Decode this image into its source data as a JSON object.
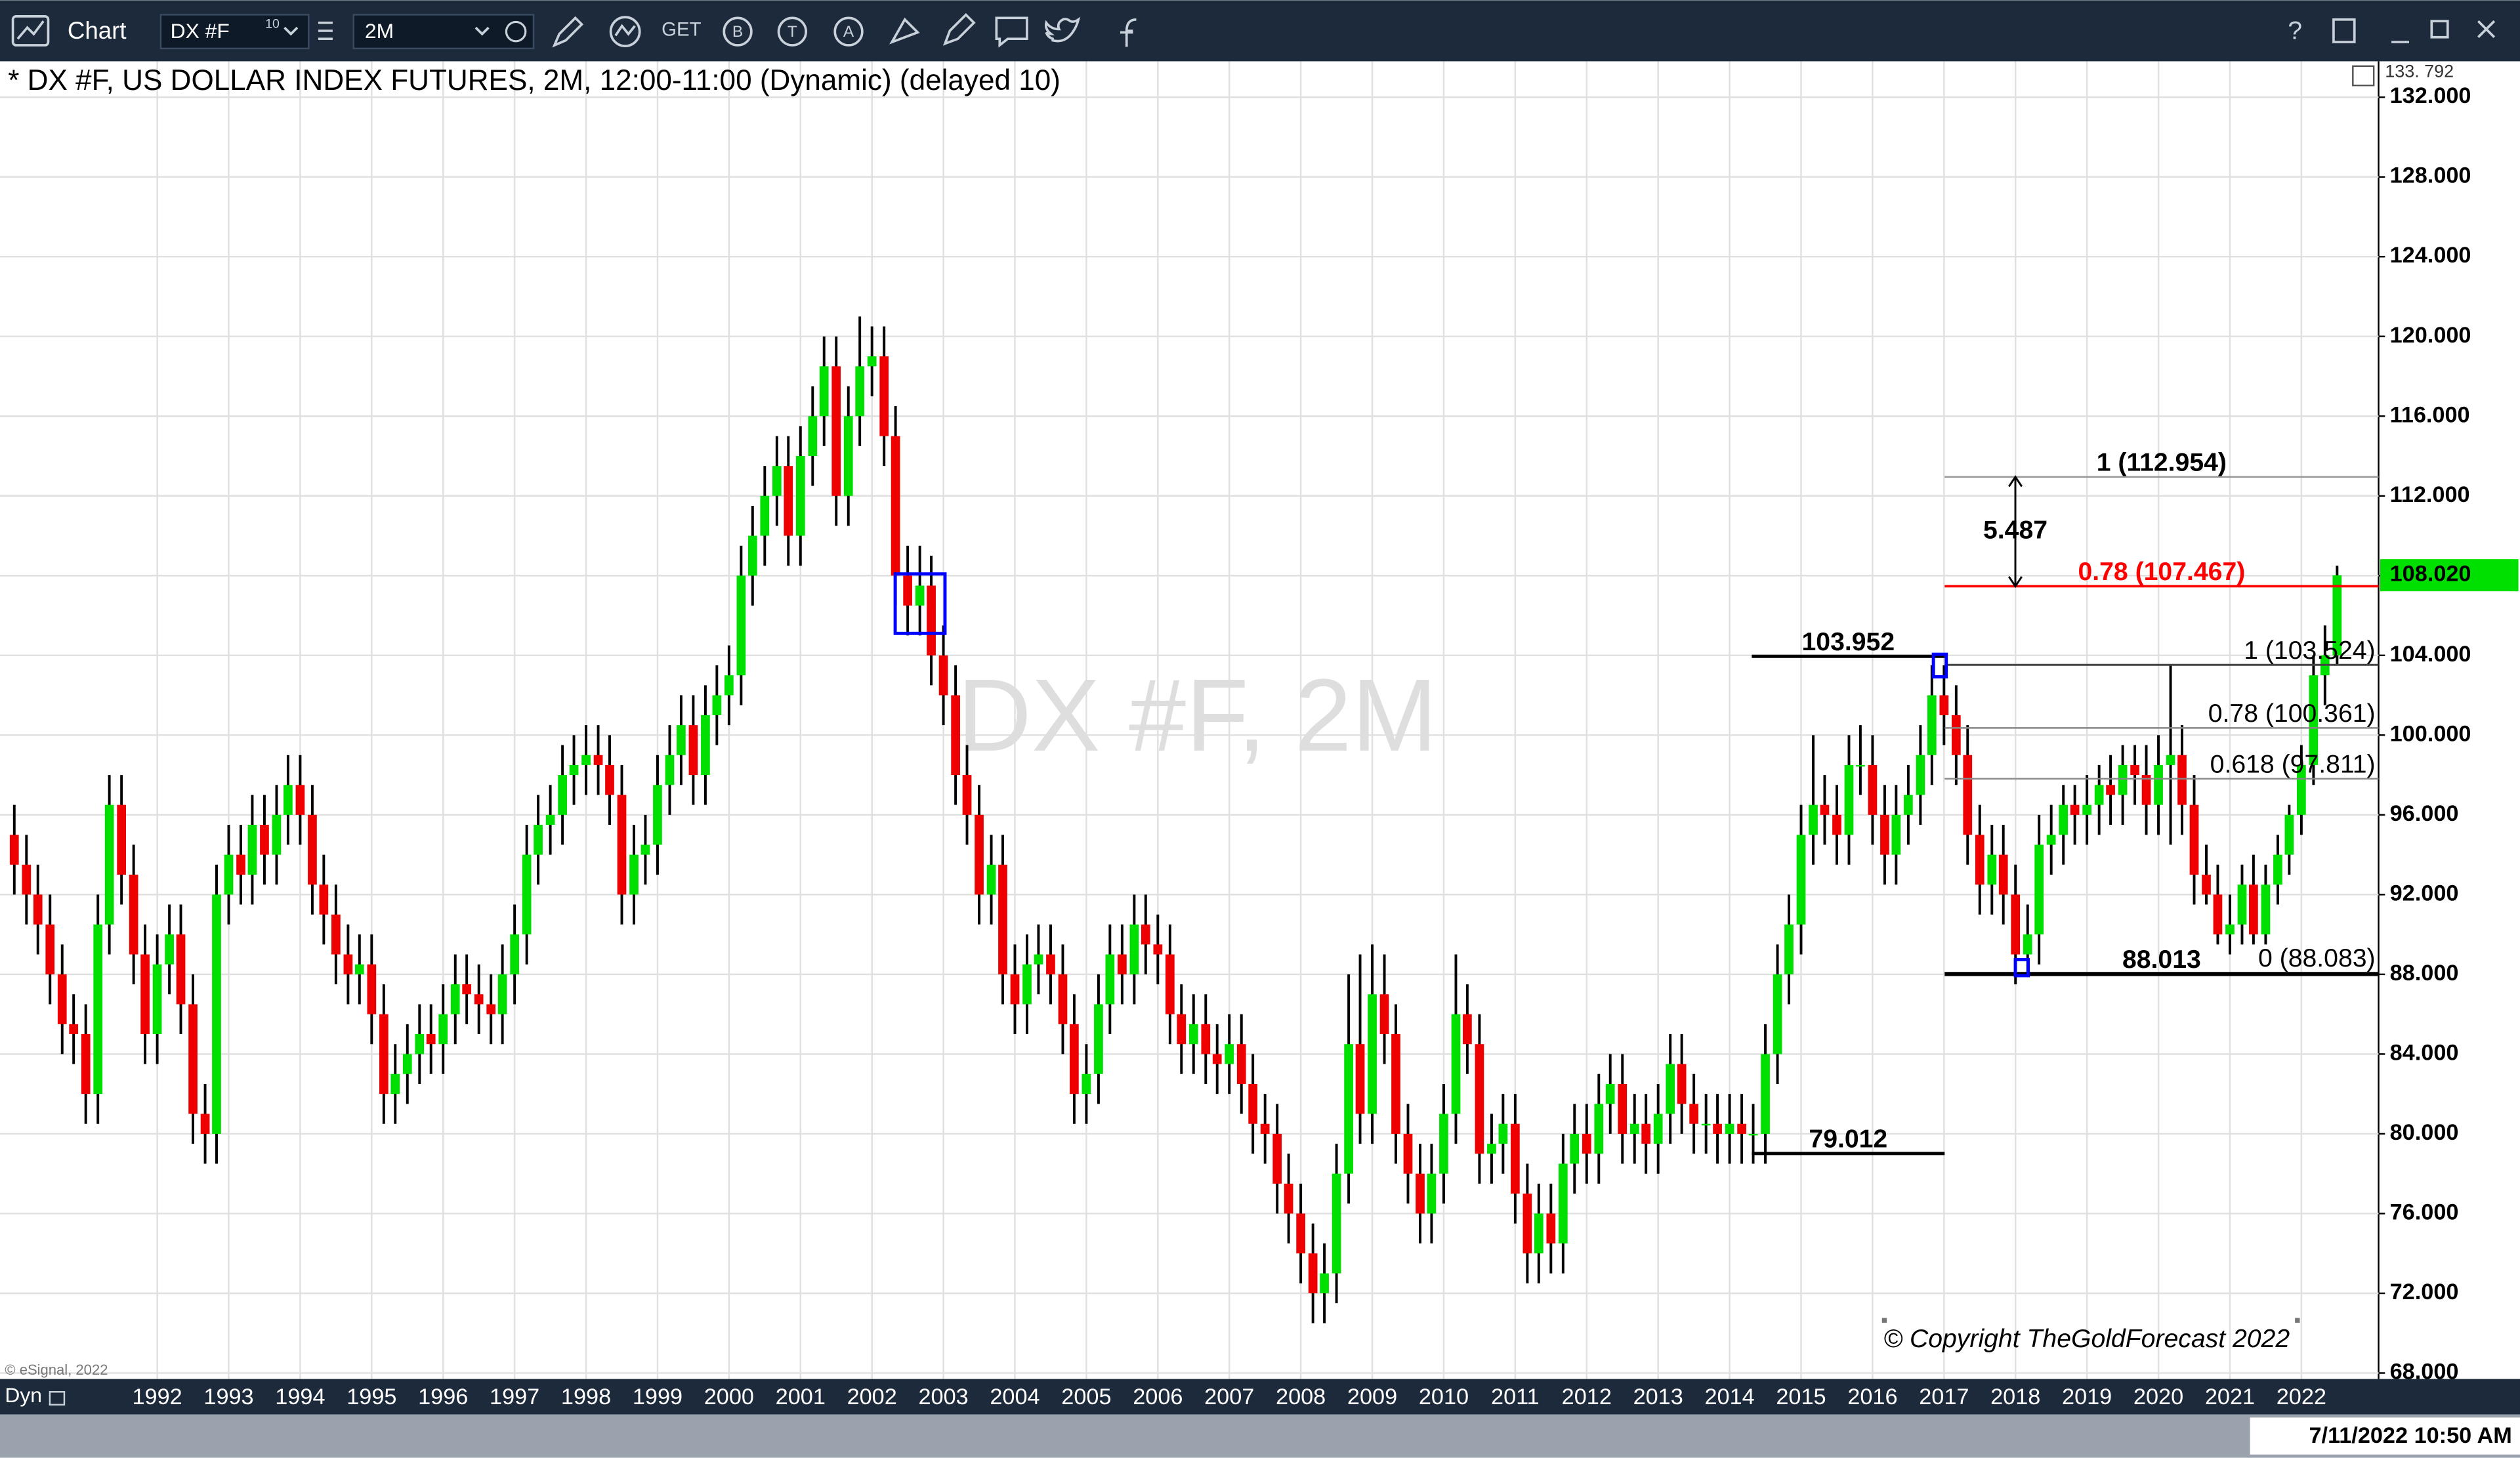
{
  "ui": {
    "app": "Chart",
    "symbol": "DX #F",
    "symbol_badge": "10",
    "interval": "2M",
    "get": "GET",
    "help": "?",
    "mode": "Dyn",
    "timestamp": "7/11/2022 10:50 AM",
    "vendor": "© eSignal, 2022"
  },
  "chart_data": {
    "type": "candlestick",
    "title": "* DX #F, US DOLLAR INDEX FUTURES, 2M, 12:00-11:00 (Dynamic) (delayed 10)",
    "watermark": "DX #F, 2M",
    "copyright": "© Copyright TheGoldForecast 2022",
    "axis_top_label": "133. 792",
    "xlim": [
      1989.8,
      2023.08
    ],
    "ylim": [
      67.7,
      133.8
    ],
    "xticks": [
      1992,
      1993,
      1994,
      1995,
      1996,
      1997,
      1998,
      1999,
      2000,
      2001,
      2002,
      2003,
      2004,
      2005,
      2006,
      2007,
      2008,
      2009,
      2010,
      2011,
      2012,
      2013,
      2014,
      2015,
      2016,
      2017,
      2018,
      2019,
      2020,
      2021,
      2022
    ],
    "yticks": [
      {
        "value": 68,
        "label": "68.000"
      },
      {
        "value": 72,
        "label": "72.000"
      },
      {
        "value": 76,
        "label": "76.000"
      },
      {
        "value": 80,
        "label": "80.000"
      },
      {
        "value": 84,
        "label": "84.000"
      },
      {
        "value": 88,
        "label": "88.000"
      },
      {
        "value": 92,
        "label": "92.000"
      },
      {
        "value": 96,
        "label": "96.000"
      },
      {
        "value": 100,
        "label": "100.000"
      },
      {
        "value": 104,
        "label": "104.000"
      },
      {
        "value": 108,
        "label": "108.000"
      },
      {
        "value": 112,
        "label": "112.000"
      },
      {
        "value": 116,
        "label": "116.000"
      },
      {
        "value": 120,
        "label": "120.000"
      },
      {
        "value": 124,
        "label": "124.000"
      },
      {
        "value": 128,
        "label": "128.000"
      },
      {
        "value": 132,
        "label": "132.000"
      }
    ],
    "grid": true,
    "up_color": "#00e000",
    "down_color": "#ee0000",
    "last_price": {
      "value": 108.02,
      "label": "108.020",
      "color": "#00e000"
    },
    "measure": {
      "label": "5.487"
    },
    "levels": [
      {
        "label": "1 (112.954)",
        "value": 112.954,
        "color": "#000000"
      },
      {
        "label": "0.78 (107.467)",
        "value": 107.467,
        "color": "#ff0000"
      },
      {
        "label": "1 (103.524)",
        "value": 103.524,
        "color": "#000000"
      },
      {
        "label": "0.78 (100.361)",
        "value": 100.361,
        "color": "#000000"
      },
      {
        "label": "0.618 (97.811)",
        "value": 97.811,
        "color": "#000000"
      },
      {
        "label": "0 (88.083)",
        "value": 88.083,
        "color": "#000000"
      },
      {
        "label": "103.952",
        "value": 103.952,
        "color": "#000000"
      },
      {
        "label": "88.013",
        "value": 88.013,
        "color": "#000000"
      },
      {
        "label": "79.012",
        "value": 79.012,
        "color": "#000000"
      }
    ],
    "x": [
      1990,
      1990.17,
      1990.33,
      1990.5,
      1990.67,
      1990.83,
      1991,
      1991.17,
      1991.33,
      1991.5,
      1991.67,
      1991.83,
      1992,
      1992.17,
      1992.33,
      1992.5,
      1992.67,
      1992.83,
      1993,
      1993.17,
      1993.33,
      1993.5,
      1993.67,
      1993.83,
      1994,
      1994.17,
      1994.33,
      1994.5,
      1994.67,
      1994.83,
      1995,
      1995.17,
      1995.33,
      1995.5,
      1995.67,
      1995.83,
      1996,
      1996.17,
      1996.33,
      1996.5,
      1996.67,
      1996.83,
      1997,
      1997.17,
      1997.33,
      1997.5,
      1997.67,
      1997.83,
      1998,
      1998.17,
      1998.33,
      1998.5,
      1998.67,
      1998.83,
      1999,
      1999.17,
      1999.33,
      1999.5,
      1999.67,
      1999.83,
      2000,
      2000.17,
      2000.33,
      2000.5,
      2000.67,
      2000.83,
      2001,
      2001.17,
      2001.33,
      2001.5,
      2001.67,
      2001.83,
      2002,
      2002.17,
      2002.33,
      2002.5,
      2002.67,
      2002.83,
      2003,
      2003.17,
      2003.33,
      2003.5,
      2003.67,
      2003.83,
      2004,
      2004.17,
      2004.33,
      2004.5,
      2004.67,
      2004.83,
      2005,
      2005.17,
      2005.33,
      2005.5,
      2005.67,
      2005.83,
      2006,
      2006.17,
      2006.33,
      2006.5,
      2006.67,
      2006.83,
      2007,
      2007.17,
      2007.33,
      2007.5,
      2007.67,
      2007.83,
      2008,
      2008.17,
      2008.33,
      2008.5,
      2008.67,
      2008.83,
      2009,
      2009.17,
      2009.33,
      2009.5,
      2009.67,
      2009.83,
      2010,
      2010.17,
      2010.33,
      2010.5,
      2010.67,
      2010.83,
      2011,
      2011.17,
      2011.33,
      2011.5,
      2011.67,
      2011.83,
      2012,
      2012.17,
      2012.33,
      2012.5,
      2012.67,
      2012.83,
      2013,
      2013.17,
      2013.33,
      2013.5,
      2013.67,
      2013.83,
      2014,
      2014.17,
      2014.33,
      2014.5,
      2014.67,
      2014.83,
      2015,
      2015.17,
      2015.33,
      2015.5,
      2015.67,
      2015.83,
      2016,
      2016.17,
      2016.33,
      2016.5,
      2016.67,
      2016.83,
      2017,
      2017.17,
      2017.33,
      2017.5,
      2017.67,
      2017.83,
      2018,
      2018.17,
      2018.33,
      2018.5,
      2018.67,
      2018.83,
      2019,
      2019.17,
      2019.33,
      2019.5,
      2019.67,
      2019.83,
      2020,
      2020.17,
      2020.33,
      2020.5,
      2020.67,
      2020.83,
      2021,
      2021.17,
      2021.33,
      2021.5,
      2021.67,
      2021.83,
      2022,
      2022.17,
      2022.33,
      2022.5
    ],
    "candles": [
      [
        95,
        96.5,
        92,
        93.5
      ],
      [
        93.5,
        95,
        90.5,
        92
      ],
      [
        92,
        93.5,
        89,
        90.5
      ],
      [
        90.5,
        92,
        86.5,
        88
      ],
      [
        88,
        89.5,
        84,
        85.5
      ],
      [
        85.5,
        87,
        83.5,
        85
      ],
      [
        85,
        86.5,
        80.5,
        82
      ],
      [
        82,
        92,
        80.5,
        90.5
      ],
      [
        90.5,
        98,
        89,
        96.5
      ],
      [
        96.5,
        98,
        91.5,
        93
      ],
      [
        93,
        94.5,
        87.5,
        89
      ],
      [
        89,
        90.5,
        83.5,
        85
      ],
      [
        85,
        90,
        83.5,
        88.5
      ],
      [
        88.5,
        91.5,
        87,
        90
      ],
      [
        90,
        91.5,
        85,
        86.5
      ],
      [
        86.5,
        88,
        79.5,
        81
      ],
      [
        81,
        82.5,
        78.5,
        80
      ],
      [
        80,
        93.5,
        78.5,
        92
      ],
      [
        92,
        95.5,
        90.5,
        94
      ],
      [
        94,
        95.5,
        91.5,
        93
      ],
      [
        93,
        97,
        91.5,
        95.5
      ],
      [
        95.5,
        97,
        92.5,
        94
      ],
      [
        94,
        97.5,
        92.5,
        96
      ],
      [
        96,
        99,
        94.5,
        97.5
      ],
      [
        97.5,
        99,
        94.5,
        96
      ],
      [
        96,
        97.5,
        91,
        92.5
      ],
      [
        92.5,
        94,
        89.5,
        91
      ],
      [
        91,
        92.5,
        87.5,
        89
      ],
      [
        89,
        90.5,
        86.5,
        88
      ],
      [
        88,
        90,
        86.5,
        88.5
      ],
      [
        88.5,
        90,
        84.5,
        86
      ],
      [
        86,
        87.5,
        80.5,
        82
      ],
      [
        82,
        84.5,
        80.5,
        83
      ],
      [
        83,
        85.5,
        81.5,
        84
      ],
      [
        84,
        86.5,
        82.5,
        85
      ],
      [
        85,
        86.5,
        83,
        84.5
      ],
      [
        84.5,
        87.5,
        83,
        86
      ],
      [
        86,
        89,
        84.5,
        87.5
      ],
      [
        87.5,
        89,
        85.5,
        87
      ],
      [
        87,
        88.5,
        85,
        86.5
      ],
      [
        86.5,
        88,
        84.5,
        86
      ],
      [
        86,
        89.5,
        84.5,
        88
      ],
      [
        88,
        91.5,
        86.5,
        90
      ],
      [
        90,
        95.5,
        88.5,
        94
      ],
      [
        94,
        97,
        92.5,
        95.5
      ],
      [
        95.5,
        97.5,
        94,
        96
      ],
      [
        96,
        99.5,
        94.5,
        98
      ],
      [
        98,
        100,
        96.5,
        98.5
      ],
      [
        98.5,
        100.5,
        97,
        99
      ],
      [
        99,
        100.5,
        97,
        98.5
      ],
      [
        98.5,
        100,
        95.5,
        97
      ],
      [
        97,
        98.5,
        90.5,
        92
      ],
      [
        92,
        95.5,
        90.5,
        94
      ],
      [
        94,
        96,
        92.5,
        94.5
      ],
      [
        94.5,
        99,
        93,
        97.5
      ],
      [
        97.5,
        100.5,
        96,
        99
      ],
      [
        99,
        102,
        97.5,
        100.5
      ],
      [
        100.5,
        102,
        96.5,
        98
      ],
      [
        98,
        102.5,
        96.5,
        101
      ],
      [
        101,
        103.5,
        99.5,
        102
      ],
      [
        102,
        104.5,
        100.5,
        103
      ],
      [
        103,
        109.5,
        101.5,
        108
      ],
      [
        108,
        111.5,
        106.5,
        110
      ],
      [
        110,
        113.5,
        108.5,
        112
      ],
      [
        112,
        115,
        110.5,
        113.5
      ],
      [
        113.5,
        115,
        108.5,
        110
      ],
      [
        110,
        115.5,
        108.5,
        114
      ],
      [
        114,
        117.5,
        112.5,
        116
      ],
      [
        116,
        120,
        114.5,
        118.5
      ],
      [
        118.5,
        120,
        110.5,
        112
      ],
      [
        112,
        117.5,
        110.5,
        116
      ],
      [
        116,
        121,
        114.5,
        118.5
      ],
      [
        118.5,
        120.5,
        117,
        119
      ],
      [
        119,
        120.5,
        113.5,
        115
      ],
      [
        115,
        116.5,
        106.5,
        108
      ],
      [
        108,
        109.5,
        105,
        106.5
      ],
      [
        106.5,
        109.5,
        105,
        107.5
      ],
      [
        107.5,
        109,
        102.5,
        104
      ],
      [
        104,
        105.5,
        100.5,
        102
      ],
      [
        102,
        103.5,
        96.5,
        98
      ],
      [
        98,
        99.5,
        94.5,
        96
      ],
      [
        96,
        97.5,
        90.5,
        92
      ],
      [
        92,
        95,
        90.5,
        93.5
      ],
      [
        93.5,
        95,
        86.5,
        88
      ],
      [
        88,
        89.5,
        85,
        86.5
      ],
      [
        86.5,
        90,
        85,
        88.5
      ],
      [
        88.5,
        90.5,
        87,
        89
      ],
      [
        89,
        90.5,
        86.5,
        88
      ],
      [
        88,
        89.5,
        84,
        85.5
      ],
      [
        85.5,
        87,
        80.5,
        82
      ],
      [
        82,
        84.5,
        80.5,
        83
      ],
      [
        83,
        88,
        81.5,
        86.5
      ],
      [
        86.5,
        90.5,
        85,
        89
      ],
      [
        89,
        90.5,
        86.5,
        88
      ],
      [
        88,
        92,
        86.5,
        90.5
      ],
      [
        90.5,
        92,
        88,
        89.5
      ],
      [
        89.5,
        91,
        87.5,
        89
      ],
      [
        89,
        90.5,
        84.5,
        86
      ],
      [
        86,
        87.5,
        83,
        84.5
      ],
      [
        84.5,
        87,
        83,
        85.5
      ],
      [
        85.5,
        87,
        82.5,
        84
      ],
      [
        84,
        85.5,
        82,
        83.5
      ],
      [
        83.5,
        86,
        82,
        84.5
      ],
      [
        84.5,
        86,
        81,
        82.5
      ],
      [
        82.5,
        84,
        79,
        80.5
      ],
      [
        80.5,
        82,
        78.5,
        80
      ],
      [
        80,
        81.5,
        76,
        77.5
      ],
      [
        77.5,
        79,
        74.5,
        76
      ],
      [
        76,
        77.5,
        72.5,
        74
      ],
      [
        74,
        75.5,
        70.5,
        72
      ],
      [
        72,
        74.5,
        70.5,
        73
      ],
      [
        73,
        79.5,
        71.5,
        78
      ],
      [
        78,
        88,
        76.5,
        84.5
      ],
      [
        84.5,
        89,
        79.5,
        81
      ],
      [
        81,
        89.5,
        79.5,
        87
      ],
      [
        87,
        89,
        83.5,
        85
      ],
      [
        85,
        86.5,
        78.5,
        80
      ],
      [
        80,
        81.5,
        76.5,
        78
      ],
      [
        78,
        79.5,
        74.5,
        76
      ],
      [
        76,
        79.5,
        74.5,
        78
      ],
      [
        78,
        82.5,
        76.5,
        81
      ],
      [
        81,
        89,
        79.5,
        86
      ],
      [
        86,
        87.5,
        83,
        84.5
      ],
      [
        84.5,
        86,
        77.5,
        79
      ],
      [
        79,
        81,
        77.5,
        79.5
      ],
      [
        79.5,
        82,
        78,
        80.5
      ],
      [
        80.5,
        82,
        75.5,
        77
      ],
      [
        77,
        78.5,
        72.5,
        74
      ],
      [
        74,
        77.5,
        72.5,
        76
      ],
      [
        76,
        77.5,
        73,
        74.5
      ],
      [
        74.5,
        80,
        73,
        78.5
      ],
      [
        78.5,
        81.5,
        77,
        80
      ],
      [
        80,
        81.5,
        77.5,
        79
      ],
      [
        79,
        83,
        77.5,
        81.5
      ],
      [
        81.5,
        84,
        80,
        82.5
      ],
      [
        82.5,
        84,
        78.5,
        80
      ],
      [
        80,
        82,
        78.5,
        80.5
      ],
      [
        80.5,
        82,
        78,
        79.5
      ],
      [
        79.5,
        82.5,
        78,
        81
      ],
      [
        81,
        85,
        79.5,
        83.5
      ],
      [
        83.5,
        85,
        80,
        81.5
      ],
      [
        81.5,
        83,
        79,
        80.5
      ],
      [
        80.5,
        82,
        79,
        80.5
      ],
      [
        80.5,
        82,
        78.5,
        80
      ],
      [
        80,
        82,
        78.5,
        80.5
      ],
      [
        80.5,
        82,
        78.5,
        80
      ],
      [
        80,
        81.5,
        78.5,
        80
      ],
      [
        80,
        85.5,
        78.5,
        84
      ],
      [
        84,
        89.5,
        82.5,
        88
      ],
      [
        88,
        92,
        86.5,
        90.5
      ],
      [
        90.5,
        96.5,
        89,
        95
      ],
      [
        95,
        100,
        93.5,
        96.5
      ],
      [
        96.5,
        98,
        94.5,
        96
      ],
      [
        96,
        97.5,
        93.5,
        95
      ],
      [
        95,
        100,
        93.5,
        98.5
      ],
      [
        98.5,
        100.5,
        97,
        98.5
      ],
      [
        98.5,
        100,
        94.5,
        96
      ],
      [
        96,
        97.5,
        92.5,
        94
      ],
      [
        94,
        97.5,
        92.5,
        96
      ],
      [
        96,
        98.5,
        94.5,
        97
      ],
      [
        97,
        100.5,
        95.5,
        99
      ],
      [
        99,
        103.5,
        97.5,
        102
      ],
      [
        102,
        103.5,
        99.5,
        101
      ],
      [
        101,
        102.5,
        97.5,
        99
      ],
      [
        99,
        100.5,
        93.5,
        95
      ],
      [
        95,
        96.5,
        91,
        92.5
      ],
      [
        92.5,
        95.5,
        91,
        94
      ],
      [
        94,
        95.5,
        90.5,
        92
      ],
      [
        92,
        93.5,
        87.5,
        89
      ],
      [
        89,
        91.5,
        88,
        90
      ],
      [
        90,
        96,
        88.5,
        94.5
      ],
      [
        94.5,
        96.5,
        93,
        95
      ],
      [
        95,
        97.5,
        93.5,
        96.5
      ],
      [
        96.5,
        97.5,
        94.5,
        96
      ],
      [
        96,
        98,
        94.5,
        96.5
      ],
      [
        96.5,
        98.5,
        95,
        97.5
      ],
      [
        97.5,
        99,
        95.5,
        97
      ],
      [
        97,
        99.5,
        95.5,
        98.5
      ],
      [
        98.5,
        99.5,
        96.5,
        98
      ],
      [
        98,
        99.5,
        95,
        96.5
      ],
      [
        96.5,
        100,
        95,
        98.5
      ],
      [
        98.5,
        103.5,
        94.5,
        99
      ],
      [
        99,
        100.5,
        95,
        96.5
      ],
      [
        96.5,
        98,
        91.5,
        93
      ],
      [
        93,
        94.5,
        91.5,
        92
      ],
      [
        92,
        93.5,
        89.5,
        90
      ],
      [
        90,
        92,
        89,
        90.5
      ],
      [
        90.5,
        93.5,
        89.5,
        92.5
      ],
      [
        92.5,
        94,
        89.5,
        90
      ],
      [
        90,
        93.5,
        89.5,
        92.5
      ],
      [
        92.5,
        95,
        91.5,
        94
      ],
      [
        94,
        96.5,
        93,
        96
      ],
      [
        96,
        99.5,
        95,
        98.5
      ],
      [
        98.5,
        104,
        97.5,
        103
      ],
      [
        103,
        105.5,
        101.5,
        104
      ],
      [
        104,
        108.5,
        103.5,
        108.02
      ]
    ]
  }
}
